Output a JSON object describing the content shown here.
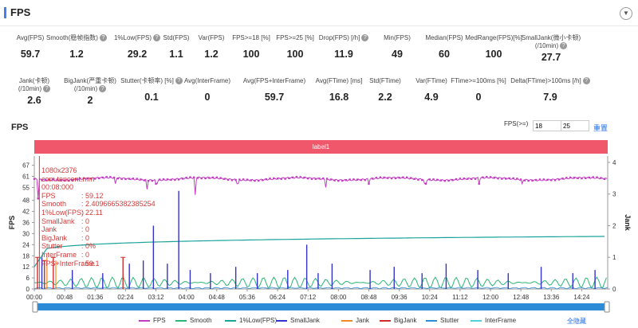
{
  "header": {
    "title": "FPS",
    "collapse_icon": "chevron-down-icon"
  },
  "metrics_row1": [
    {
      "label": "Avg(FPS)",
      "value": "59.7",
      "help": false
    },
    {
      "label": "Smooth(稳帧指数)",
      "value": "1.2",
      "help": true
    },
    {
      "label": "1%Low(FPS)",
      "value": "29.2",
      "help": true
    },
    {
      "label": "Std(FPS)",
      "value": "1.1",
      "help": false
    },
    {
      "label": "Var(FPS)",
      "value": "1.2",
      "help": false
    },
    {
      "label": "FPS>=18 [%]",
      "value": "100",
      "help": false
    },
    {
      "label": "FPS>=25 [%]",
      "value": "100",
      "help": false
    },
    {
      "label": "Drop(FPS) [/h]",
      "value": "11.9",
      "help": true
    },
    {
      "label": "Min(FPS)",
      "value": "49",
      "help": false
    },
    {
      "label": "Median(FPS)",
      "value": "60",
      "help": false
    },
    {
      "label": "MedRange(FPS)[%]",
      "value": "100",
      "help": false
    },
    {
      "label": "SmallJank(微小卡顿)",
      "label2": "(/10min)",
      "value": "27.7",
      "help": true
    }
  ],
  "metrics_row2": [
    {
      "label": "Jank(卡顿)",
      "label2": "(/10min)",
      "value": "2.6",
      "help": true
    },
    {
      "label": "BigJank(严重卡顿)",
      "label2": "(/10min)",
      "value": "2",
      "help": true
    },
    {
      "label": "Stutter(卡顿率) [%]",
      "value": "0.1",
      "help": true
    },
    {
      "label": "Avg(InterFrame)",
      "value": "0",
      "help": false
    },
    {
      "label": "Avg(FPS+InterFrame)",
      "value": "59.7",
      "help": false
    },
    {
      "label": "Avg(FTime) [ms]",
      "value": "16.8",
      "help": false
    },
    {
      "label": "Std(FTime)",
      "value": "2.2",
      "help": false
    },
    {
      "label": "Var(FTime)",
      "value": "4.9",
      "help": false
    },
    {
      "label": "FTime>=100ms [%]",
      "value": "0",
      "help": false
    },
    {
      "label": "Delta(FTime)>100ms [/h]",
      "value": "7.9",
      "help": true
    }
  ],
  "chart_header": {
    "title": "FPS",
    "threshold_label": "FPS(>=)",
    "threshold_1": "18",
    "threshold_2": "25",
    "reset_label": "重置"
  },
  "label_bar": "label1",
  "tooltip": {
    "resolution": "1080x2376",
    "app": "com.tencent.mm",
    "time": "00:08:000",
    "rows": [
      {
        "k": "FPS",
        "v": ": 59.12"
      },
      {
        "k": "Smooth",
        "v": ": 2.4096665382385254"
      },
      {
        "k": "1%Low(FPS)",
        "v": ": 22.11"
      },
      {
        "k": "SmallJank",
        "v": ": 0"
      },
      {
        "k": "Jank",
        "v": ": 0"
      },
      {
        "k": "BigJank",
        "v": ": 0"
      },
      {
        "k": "Stutter",
        "v": ": 0%"
      },
      {
        "k": "InterFrame",
        "v": ": 0"
      },
      {
        "k": "FPS+InterFrame",
        "v": ": 59.1"
      }
    ]
  },
  "chart_data": {
    "type": "line",
    "ylabel_left": "FPS",
    "ylabel_right": "Jank",
    "y_ticks_left": [
      0,
      6,
      12,
      18,
      24,
      30,
      36,
      42,
      48,
      55,
      61,
      67
    ],
    "y_ticks_right": [
      0,
      1,
      2,
      3,
      4
    ],
    "x_ticks": [
      "00:00",
      "00:48",
      "01:36",
      "02:24",
      "03:12",
      "04:00",
      "04:48",
      "05:36",
      "06:24",
      "07:12",
      "08:00",
      "08:48",
      "09:36",
      "10:24",
      "11:12",
      "12:00",
      "12:48",
      "13:36",
      "14:24"
    ],
    "x_range_seconds": [
      0,
      905
    ],
    "series": [
      {
        "name": "FPS",
        "color": "#c23cc2",
        "approx_level": 59.6
      },
      {
        "name": "Smooth",
        "color": "#2bb673"
      },
      {
        "name": "1%Low(FPS)",
        "color": "#1aa39a",
        "start": 12,
        "end": 28.5
      },
      {
        "name": "SmallJank",
        "color": "#3333cc"
      },
      {
        "name": "Jank",
        "color": "#f08a24"
      },
      {
        "name": "BigJank",
        "color": "#d12c2c"
      },
      {
        "name": "Stutter",
        "color": "#2e8bd6"
      },
      {
        "name": "InterFrame",
        "color": "#4fd2dc"
      }
    ],
    "fps_dips": [
      [
        6,
        49
      ],
      [
        128,
        57
      ],
      [
        178,
        54
      ],
      [
        193,
        57
      ],
      [
        254,
        51
      ],
      [
        321,
        57
      ],
      [
        460,
        55
      ],
      [
        528,
        57
      ],
      [
        617,
        57
      ],
      [
        702,
        57
      ],
      [
        770,
        57
      ]
    ],
    "small_jank_spikes": [
      [
        12,
        1.0
      ],
      [
        60,
        0.6
      ],
      [
        108,
        0.5
      ],
      [
        150,
        0.8
      ],
      [
        172,
        0.9
      ],
      [
        188,
        2.0
      ],
      [
        210,
        0.8
      ],
      [
        228,
        3.1
      ],
      [
        246,
        0.6
      ],
      [
        278,
        0.5
      ],
      [
        318,
        0.7
      ],
      [
        352,
        0.5
      ],
      [
        400,
        0.6
      ],
      [
        430,
        1.4
      ],
      [
        448,
        0.5
      ],
      [
        470,
        0.8
      ],
      [
        530,
        0.6
      ],
      [
        568,
        0.7
      ],
      [
        612,
        0.5
      ],
      [
        650,
        0.8
      ],
      [
        700,
        0.6
      ],
      [
        748,
        0.5
      ],
      [
        800,
        0.7
      ],
      [
        850,
        0.5
      ],
      [
        885,
        0.6
      ]
    ],
    "big_jank_spikes": [
      [
        5,
        1.0
      ],
      [
        16,
        0.9
      ],
      [
        30,
        1.0
      ],
      [
        140,
        1.0
      ]
    ]
  },
  "legend_hide_all": "全隐藏"
}
